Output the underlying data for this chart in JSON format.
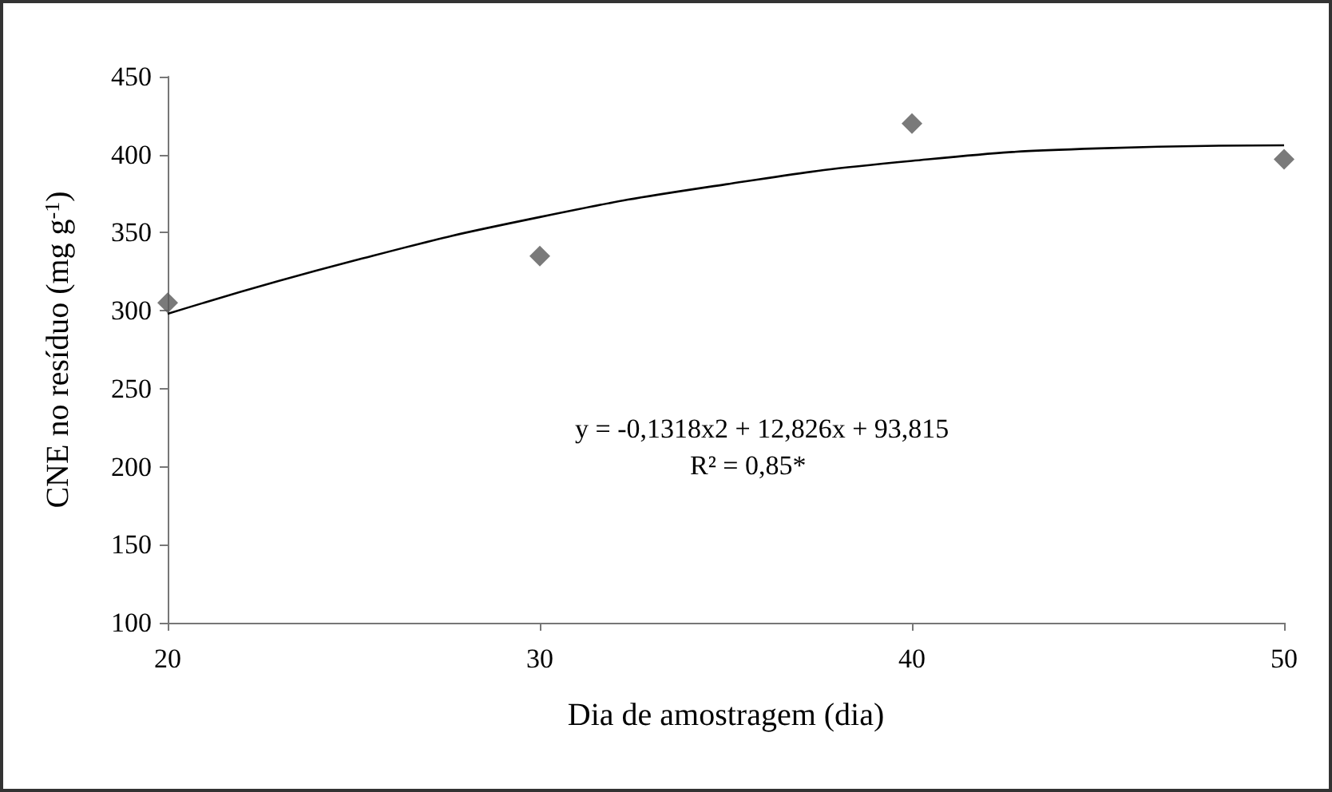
{
  "chart_data": {
    "type": "scatter",
    "xlabel": "Dia de amostragem (dia)",
    "ylabel": "CNE no resíduo (mg g$^{-1}$)",
    "xlim": [
      20,
      50
    ],
    "xticks": [
      20,
      30,
      40,
      50
    ],
    "ylim": [
      100,
      450
    ],
    "yticks": [
      100,
      150,
      200,
      250,
      300,
      350,
      400,
      450
    ],
    "grid": false,
    "marker": "diamond",
    "series": [
      {
        "color": "#595959",
        "x": [
          20,
          30,
          40,
          50
        ],
        "values": [
          305,
          335,
          420,
          397
        ]
      },
      {
        "type": "line",
        "color": "#000000",
        "marker": "none",
        "line_style": "solid",
        "x": [
          20,
          25,
          30,
          35,
          40,
          45,
          50
        ],
        "values": [
          298,
          332,
          360,
          381,
          396,
          404,
          406
        ]
      }
    ],
    "annotations": [
      "y = -0,1318x2 + 12,826x + 93,815",
      "R² = 0,85*"
    ]
  }
}
